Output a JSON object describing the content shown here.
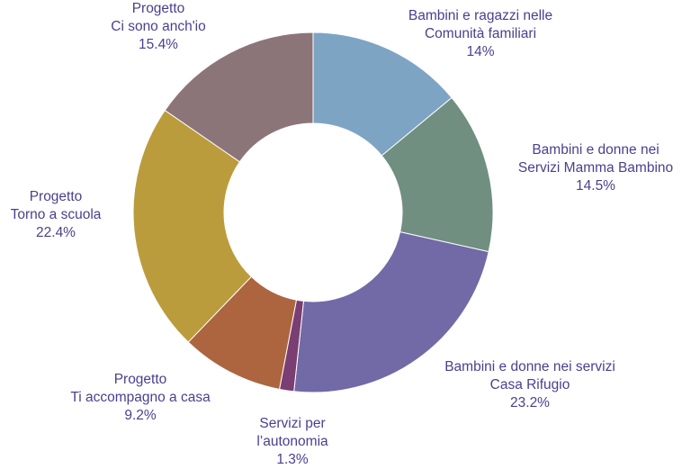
{
  "chart_data": {
    "type": "pie",
    "donut": true,
    "title": "",
    "slices": [
      {
        "name_lines": [
          "Bambini e ragazzi nelle",
          "Comunità familiari"
        ],
        "value": 14.0,
        "label": "14%",
        "color": "#7ea4c4"
      },
      {
        "name_lines": [
          "Bambini e donne nei",
          "Servizi Mamma Bambino"
        ],
        "value": 14.5,
        "label": "14.5%",
        "color": "#718f80"
      },
      {
        "name_lines": [
          "Bambini e donne nei servizi",
          "Casa Rifugio"
        ],
        "value": 23.2,
        "label": "23.2%",
        "color": "#726aa6"
      },
      {
        "name_lines": [
          "Servizi per",
          "l’autonomia"
        ],
        "value": 1.3,
        "label": "1.3%",
        "color": "#7a3e72"
      },
      {
        "name_lines": [
          "Progetto",
          "Ti accompagno a casa"
        ],
        "value": 9.2,
        "label": "9.2%",
        "color": "#ad653f"
      },
      {
        "name_lines": [
          "Progetto",
          "Torno a scuola"
        ],
        "value": 22.4,
        "label": "22.4%",
        "color": "#bb9c3c"
      },
      {
        "name_lines": [
          "Progetto",
          "Ci sono anch'io"
        ],
        "value": 15.4,
        "label": "15.4%",
        "color": "#8c7579"
      }
    ],
    "legend": "none",
    "label_color": "#4a3f8f"
  }
}
